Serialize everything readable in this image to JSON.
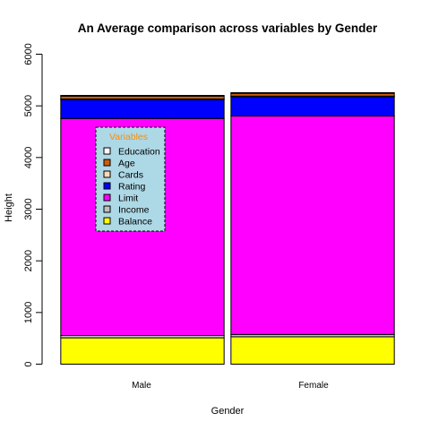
{
  "chart_data": {
    "type": "bar",
    "stacked": true,
    "title": "An Average comparison across variables by Gender",
    "xlabel": "Gender",
    "ylabel": "Height",
    "ylim": [
      0,
      6000
    ],
    "yticks": [
      0,
      1000,
      2000,
      3000,
      4000,
      5000,
      6000
    ],
    "categories": [
      "Male",
      "Female"
    ],
    "series": [
      {
        "name": "Balance",
        "color": "#ffff00",
        "values": [
          510,
          530
        ]
      },
      {
        "name": "Income",
        "color": "#bebebe",
        "values": [
          45,
          45
        ]
      },
      {
        "name": "Limit",
        "color": "#ff00ff",
        "values": [
          4200,
          4230
        ]
      },
      {
        "name": "Rating",
        "color": "#0000ff",
        "values": [
          375,
          380
        ]
      },
      {
        "name": "Cards",
        "color": "#ffdab9",
        "values": [
          3,
          3
        ]
      },
      {
        "name": "Age",
        "color": "#cd5c0a",
        "values": [
          56,
          55
        ]
      },
      {
        "name": "Education",
        "color": "#ffffff",
        "values": [
          13,
          13
        ]
      }
    ],
    "legend": {
      "title": "Variables",
      "placement": "center-left",
      "items": [
        "Education",
        "Age",
        "Cards",
        "Rating",
        "Limit",
        "Income",
        "Balance"
      ]
    },
    "grid": false
  }
}
